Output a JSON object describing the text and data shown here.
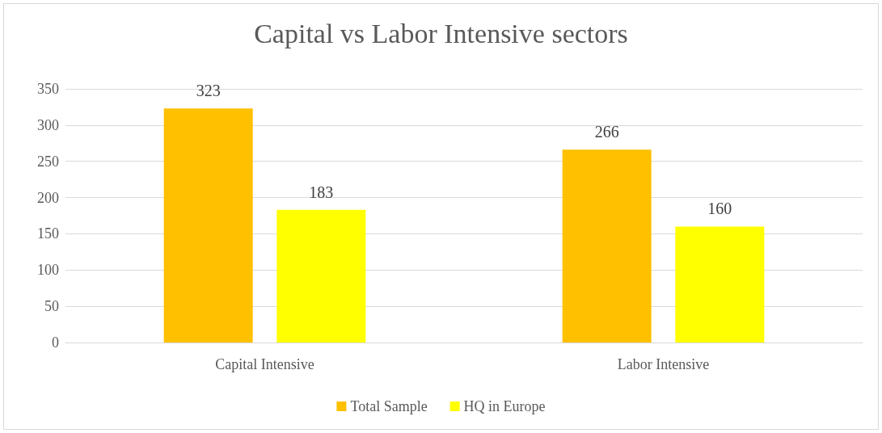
{
  "chart_data": {
    "type": "bar",
    "title": "Capital vs Labor Intensive sectors",
    "categories": [
      "Capital Intensive",
      "Labor Intensive"
    ],
    "series": [
      {
        "name": "Total Sample",
        "color": "#ffc000",
        "values": [
          323,
          266
        ]
      },
      {
        "name": "HQ in Europe",
        "color": "#ffff00",
        "values": [
          183,
          160
        ]
      }
    ],
    "ylim": [
      0,
      350
    ],
    "yticks": [
      0,
      50,
      100,
      150,
      200,
      250,
      300,
      350
    ],
    "grid": "y",
    "legend": "bottom",
    "data_labels": true
  }
}
